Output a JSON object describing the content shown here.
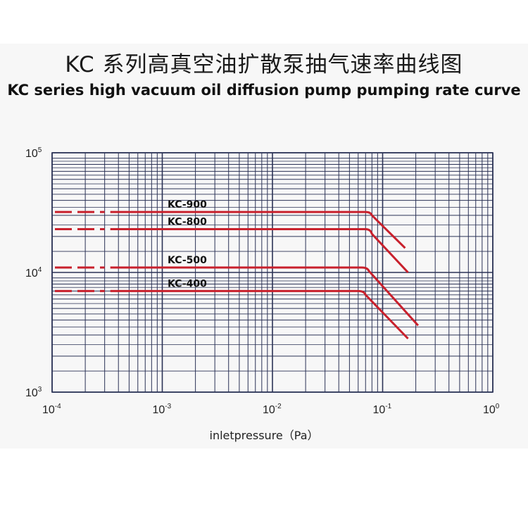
{
  "title_cn": "KC 系列高真空油扩散泵抽气速率曲线图",
  "title_en": "KC series high vacuum oil diffusion pump pumping rate curve",
  "chart_data": {
    "type": "line",
    "title": "KC series high vacuum oil diffusion pump pumping rate curve",
    "xlabel": "inletpressure（Pa）",
    "ylabel": "",
    "x_scale": "log",
    "y_scale": "log",
    "xlim": [
      0.0001,
      1
    ],
    "ylim": [
      1000,
      100000
    ],
    "x_ticks": [
      {
        "base": "10",
        "exp": "-4",
        "value": 0.0001
      },
      {
        "base": "10",
        "exp": "-3",
        "value": 0.001
      },
      {
        "base": "10",
        "exp": "-2",
        "value": 0.01
      },
      {
        "base": "10",
        "exp": "-1",
        "value": 0.1
      },
      {
        "base": "10",
        "exp": "0",
        "value": 1
      }
    ],
    "y_ticks": [
      {
        "base": "10",
        "exp": "3",
        "value": 1000
      },
      {
        "base": "10",
        "exp": "4",
        "value": 10000
      },
      {
        "base": "10",
        "exp": "5",
        "value": 100000
      }
    ],
    "grid": true,
    "line_color": "#c8202c",
    "grid_color": "#2b3256",
    "dashed_below_x": 0.0003,
    "series": [
      {
        "name": "KC-900",
        "x": [
          0.0001,
          0.07,
          0.08,
          0.16
        ],
        "y": [
          32000,
          32000,
          30000,
          16000
        ]
      },
      {
        "name": "KC-800",
        "x": [
          0.0001,
          0.07,
          0.08,
          0.17
        ],
        "y": [
          23000,
          23000,
          21000,
          10000
        ]
      },
      {
        "name": "KC-500",
        "x": [
          0.0001,
          0.065,
          0.075,
          0.21
        ],
        "y": [
          11000,
          11000,
          10300,
          3600
        ]
      },
      {
        "name": "KC-400",
        "x": [
          0.0001,
          0.06,
          0.07,
          0.17
        ],
        "y": [
          7000,
          7000,
          6500,
          2800
        ]
      }
    ]
  }
}
